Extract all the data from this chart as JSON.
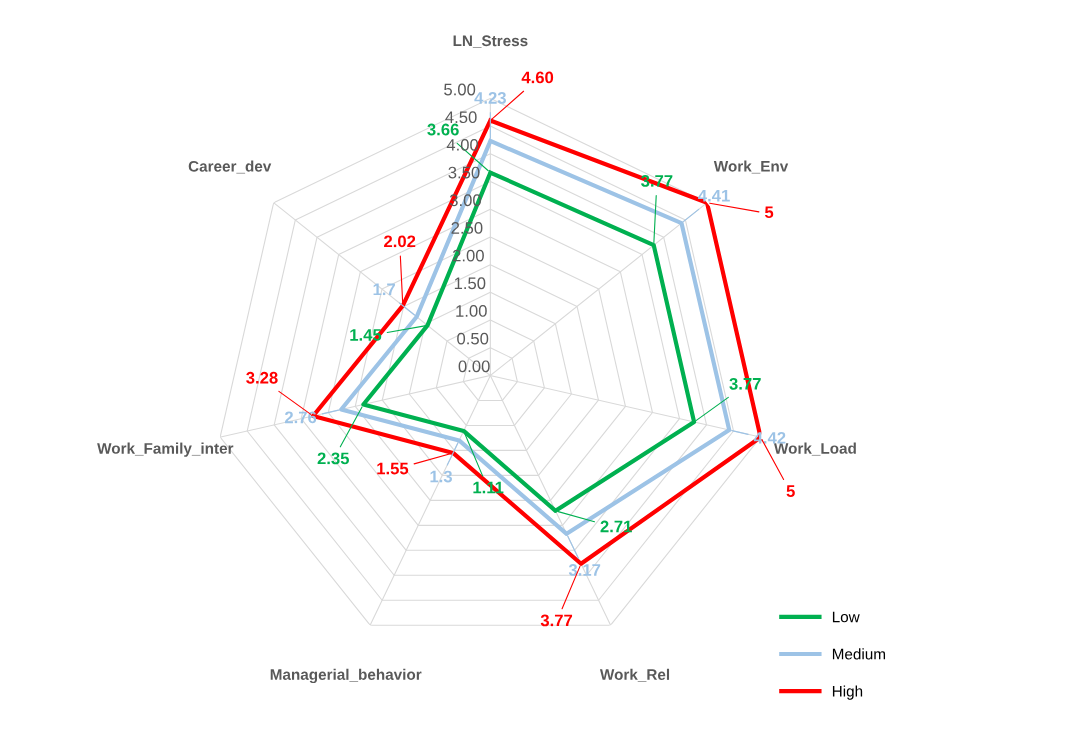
{
  "chart_data": {
    "type": "radar",
    "categories": [
      "LN_Stress",
      "Work_Env",
      "Work_Load",
      "Work_Rel",
      "Managerial_behavior",
      "Work_Family_inter",
      "Career_dev"
    ],
    "series": [
      {
        "name": "Low",
        "color": "#00b050",
        "values": [
          3.66,
          3.77,
          3.77,
          2.71,
          1.11,
          2.35,
          1.45
        ],
        "value_labels": [
          "3.66",
          "3.77",
          "3.77",
          "2.71",
          "1.11",
          "2.35",
          "1.45"
        ]
      },
      {
        "name": "Medium",
        "color": "#9dc3e6",
        "values": [
          4.23,
          4.41,
          4.42,
          3.17,
          1.3,
          2.76,
          1.7
        ],
        "value_labels": [
          "4.23",
          "4.41",
          "4.42",
          "3.17",
          "1.3",
          "2.76",
          "1.7"
        ]
      },
      {
        "name": "High",
        "color": "#ff0000",
        "values": [
          4.6,
          5,
          5,
          3.77,
          1.55,
          3.28,
          2.02
        ],
        "value_labels": [
          "4.60",
          "5",
          "5",
          "3.77",
          "1.55",
          "3.28",
          "2.02"
        ]
      }
    ],
    "ylim": [
      0,
      5
    ],
    "yticks": [
      {
        "value": 0,
        "label": "0.00"
      },
      {
        "value": 0.5,
        "label": "0.50"
      },
      {
        "value": 1,
        "label": "1.00"
      },
      {
        "value": 1.5,
        "label": "1.50"
      },
      {
        "value": 2,
        "label": "2.00"
      },
      {
        "value": 2.5,
        "label": "2.50"
      },
      {
        "value": 3,
        "label": "3.00"
      },
      {
        "value": 3.5,
        "label": "3.50"
      },
      {
        "value": 4,
        "label": "4.00"
      },
      {
        "value": 4.5,
        "label": "4.50"
      },
      {
        "value": 5,
        "label": "5.00"
      }
    ],
    "grid": true,
    "legend": "bottom right",
    "marker": "none",
    "line_style": "solid"
  }
}
